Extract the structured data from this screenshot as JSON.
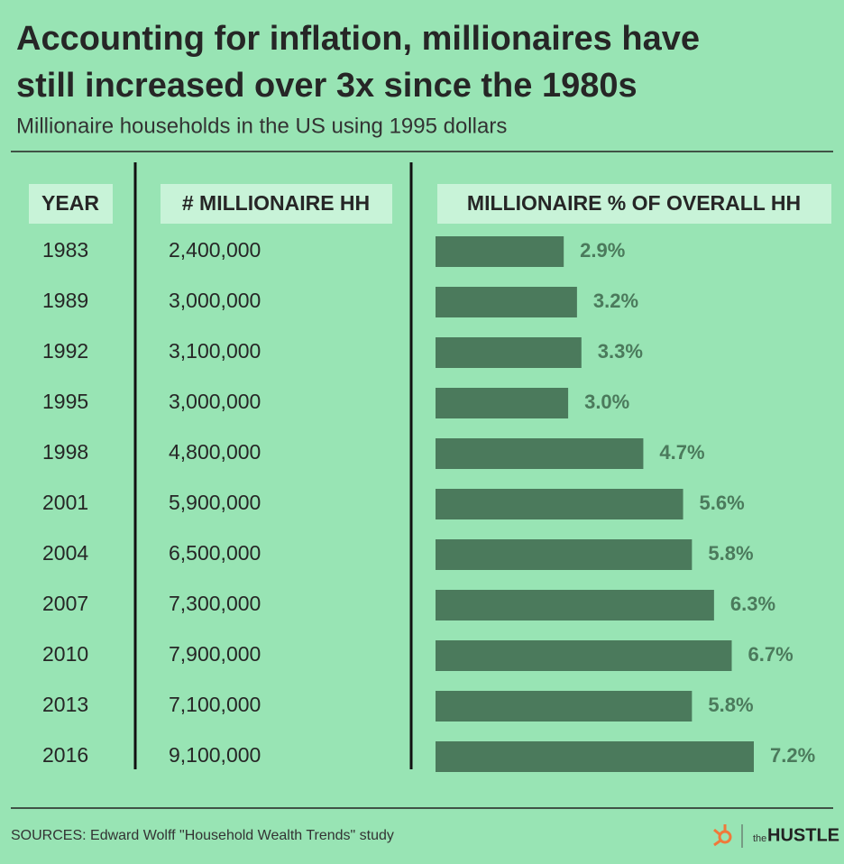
{
  "chart_data": {
    "type": "bar",
    "title": [
      "Accounting for inflation, millionaires have",
      "still increased over 3x since the 1980s"
    ],
    "subtitle": "Millionaire households in the US using 1995 dollars",
    "headers": [
      "YEAR",
      "# MILLIONAIRE HH",
      "MILLIONAIRE % OF OVERALL HH"
    ],
    "categories": [
      "1983",
      "1989",
      "1992",
      "1995",
      "1998",
      "2001",
      "2004",
      "2007",
      "2010",
      "2013",
      "2016"
    ],
    "households": [
      "2,400,000",
      "3,000,000",
      "3,100,000",
      "3,000,000",
      "4,800,000",
      "5,900,000",
      "6,500,000",
      "7,300,000",
      "7,900,000",
      "7,100,000",
      "9,100,000"
    ],
    "values": [
      2.9,
      3.2,
      3.3,
      3.0,
      4.7,
      5.6,
      5.8,
      6.3,
      6.7,
      5.8,
      7.2
    ],
    "value_labels": [
      "2.9%",
      "3.2%",
      "3.3%",
      "3.0%",
      "4.7%",
      "5.6%",
      "5.8%",
      "6.3%",
      "6.7%",
      "5.8%",
      "7.2%"
    ],
    "color": "#4b7a5c",
    "source": "SOURCES: Edward Wolff \"Household Wealth Trends\" study",
    "brand": [
      "the",
      "HUSTLE"
    ]
  }
}
